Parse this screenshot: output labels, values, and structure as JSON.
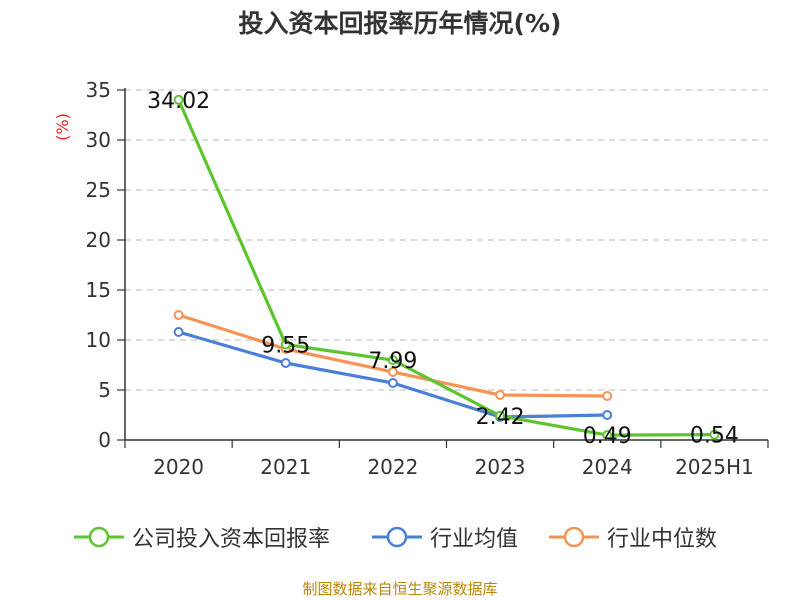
{
  "title": "投入资本回报率历年情况(%)",
  "source": "制图数据来自恒生聚源数据库",
  "chart_data": {
    "type": "line",
    "categories": [
      "2020",
      "2021",
      "2022",
      "2023",
      "2024",
      "2025H1"
    ],
    "ylabel": "(%)",
    "ylim": [
      0,
      35
    ],
    "yticks": [
      0,
      5,
      10,
      15,
      20,
      25,
      30,
      35
    ],
    "grid": true,
    "legend_position": "bottom",
    "series": [
      {
        "name": "公司投入资本回报率",
        "color": "#5cc52e",
        "values": [
          34.02,
          9.55,
          7.99,
          2.42,
          0.49,
          0.54
        ],
        "labels": [
          "34.02",
          "9.55",
          "7.99",
          "2.42",
          "0.49",
          "0.54"
        ]
      },
      {
        "name": "行业均值",
        "color": "#4a7fd8",
        "values": [
          10.8,
          7.7,
          5.7,
          2.3,
          2.5,
          null
        ]
      },
      {
        "name": "行业中位数",
        "color": "#f59356",
        "values": [
          12.5,
          9.1,
          6.8,
          4.5,
          4.4,
          null
        ]
      }
    ]
  }
}
